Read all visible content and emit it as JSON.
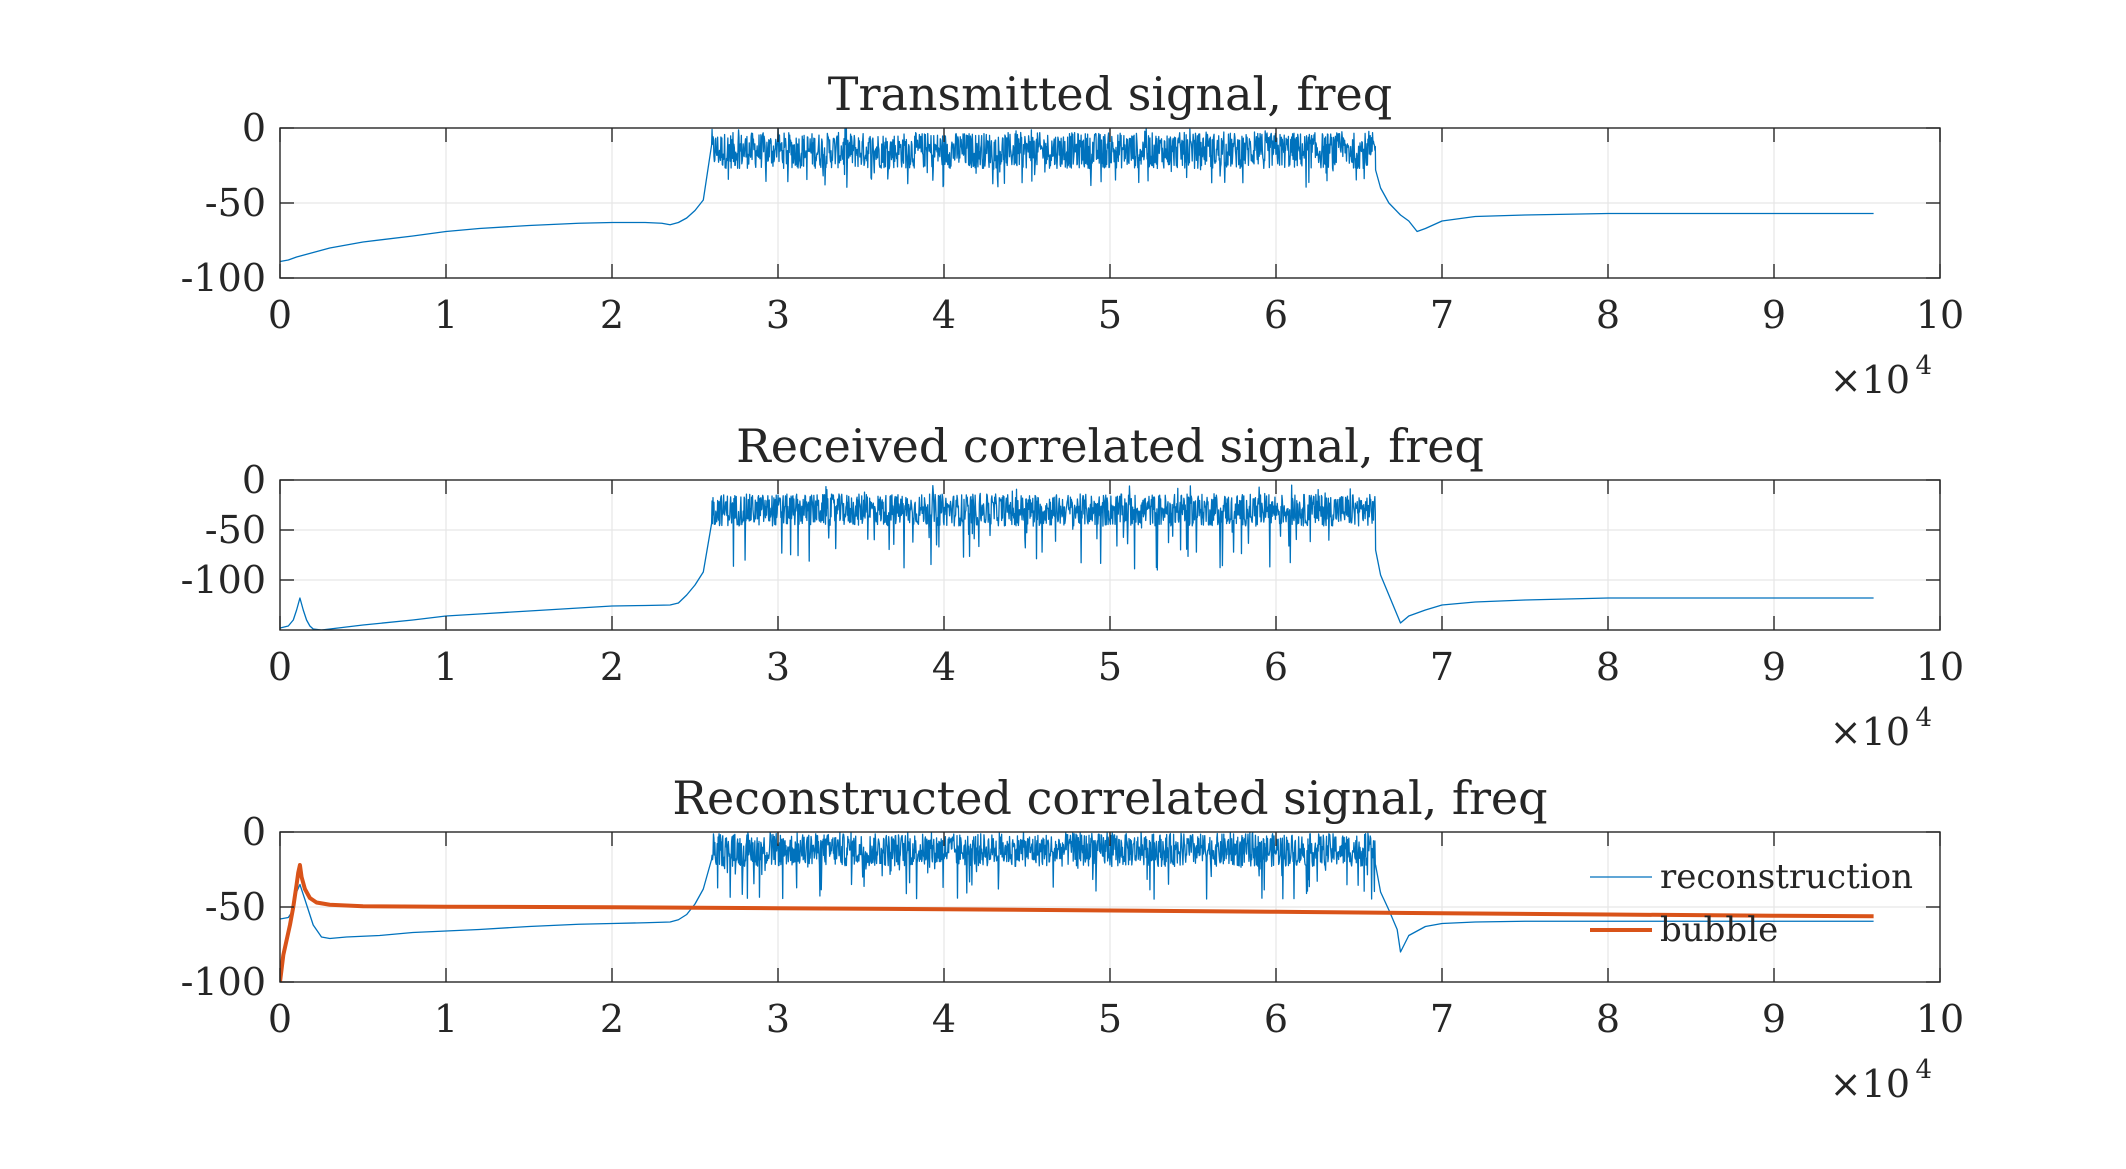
{
  "figure": {
    "background": "#ffffff"
  },
  "chart_data": [
    {
      "type": "line",
      "title": "Transmitted signal, freq",
      "xlim": [
        0,
        100000
      ],
      "ylim": [
        -100,
        0
      ],
      "xticks": [
        0,
        10000,
        20000,
        30000,
        40000,
        50000,
        60000,
        70000,
        80000,
        90000,
        100000
      ],
      "xtick_labels": [
        "0",
        "1",
        "2",
        "3",
        "4",
        "5",
        "6",
        "7",
        "8",
        "9",
        "10"
      ],
      "yticks": [
        0,
        -50,
        -100
      ],
      "ytick_labels": [
        "0",
        "-50",
        "-100"
      ],
      "x_exponent": {
        "base": "×10",
        "power": "4"
      },
      "grid": true,
      "series": [
        {
          "color": "#0072bd",
          "linewidth": 1.3,
          "x": [
            0,
            500,
            1000,
            2000,
            3000,
            5000,
            8000,
            10000,
            12000,
            15000,
            18000,
            20000,
            22000,
            23000,
            23500,
            24000,
            24500,
            25000,
            25500,
            26000,
            26500,
            66000,
            66300,
            66800,
            67500,
            68000,
            68500,
            69000,
            70000,
            72000,
            75000,
            80000,
            85000,
            90000,
            96000
          ],
          "y": [
            -89,
            -88,
            -86,
            -83,
            -80,
            -76,
            -72,
            -69,
            -67,
            -65,
            -63.5,
            -63,
            -63,
            -63.5,
            -64.5,
            -63,
            -60,
            -55,
            -48,
            -40,
            -28,
            -28,
            -40,
            -50,
            -58,
            -62,
            -69,
            -67,
            -62,
            -59,
            -58,
            -57,
            -57,
            -57,
            -57
          ],
          "noise": {
            "x_start": 26000,
            "x_end": 66000,
            "center": -15,
            "amplitude": 12,
            "dip_min": -40,
            "top_max": 0
          }
        }
      ]
    },
    {
      "type": "line",
      "title": "Received correlated signal, freq",
      "xlim": [
        0,
        100000
      ],
      "ylim": [
        -150,
        0
      ],
      "xticks": [
        0,
        10000,
        20000,
        30000,
        40000,
        50000,
        60000,
        70000,
        80000,
        90000,
        100000
      ],
      "xtick_labels": [
        "0",
        "1",
        "2",
        "3",
        "4",
        "5",
        "6",
        "7",
        "8",
        "9",
        "10"
      ],
      "yticks": [
        0,
        -50,
        -100
      ],
      "ytick_labels": [
        "0",
        "-50",
        "-100"
      ],
      "x_exponent": {
        "base": "×10",
        "power": "4"
      },
      "grid": true,
      "series": [
        {
          "color": "#0072bd",
          "linewidth": 1.3,
          "x": [
            0,
            500,
            800,
            1000,
            1200,
            1400,
            1600,
            1800,
            2000,
            2500,
            3000,
            5000,
            8000,
            10000,
            12000,
            15000,
            18000,
            20000,
            22000,
            23500,
            24000,
            24500,
            25000,
            25500,
            26000,
            66000,
            66300,
            66800,
            67300,
            67500,
            68000,
            69000,
            70000,
            72000,
            75000,
            80000,
            85000,
            90000,
            96000
          ],
          "y": [
            -148,
            -146,
            -140,
            -130,
            -118,
            -130,
            -140,
            -146,
            -149,
            -150,
            -149,
            -145,
            -140,
            -136,
            -134,
            -131,
            -128,
            -126,
            -125.5,
            -125,
            -123,
            -115,
            -105,
            -92,
            -70,
            -70,
            -95,
            -115,
            -135,
            -143,
            -136,
            -130,
            -125,
            -122,
            -120,
            -118,
            -118,
            -118,
            -118
          ],
          "noise": {
            "x_start": 26000,
            "x_end": 66000,
            "center": -30,
            "amplitude": 16,
            "dip_min": -90,
            "top_max": -5
          }
        }
      ]
    },
    {
      "type": "line",
      "title": "Reconstructed correlated signal, freq",
      "xlim": [
        0,
        100000
      ],
      "ylim": [
        -100,
        0
      ],
      "xticks": [
        0,
        10000,
        20000,
        30000,
        40000,
        50000,
        60000,
        70000,
        80000,
        90000,
        100000
      ],
      "xtick_labels": [
        "0",
        "1",
        "2",
        "3",
        "4",
        "5",
        "6",
        "7",
        "8",
        "9",
        "10"
      ],
      "yticks": [
        0,
        -50,
        -100
      ],
      "ytick_labels": [
        "0",
        "-50",
        "-100"
      ],
      "x_exponent": {
        "base": "×10",
        "power": "4"
      },
      "grid": true,
      "legend": {
        "placement": "upper-right"
      },
      "series": [
        {
          "name": "reconstruction",
          "color": "#0072bd",
          "linewidth": 1.3,
          "x": [
            0,
            500,
            800,
            1000,
            1200,
            1500,
            2000,
            2500,
            3000,
            4000,
            6000,
            8000,
            10000,
            12000,
            15000,
            18000,
            20000,
            22000,
            23500,
            24000,
            24500,
            25000,
            25500,
            26000,
            66000,
            66300,
            66800,
            67300,
            67500,
            68000,
            69000,
            70000,
            72000,
            75000,
            80000,
            85000,
            90000,
            96000
          ],
          "y": [
            -58,
            -57,
            -52,
            -40,
            -35,
            -45,
            -62,
            -70,
            -71,
            -70,
            -69,
            -67,
            -66,
            -65,
            -63,
            -61.5,
            -61,
            -60.5,
            -60,
            -58.5,
            -55,
            -48,
            -38,
            -22,
            -22,
            -40,
            -52,
            -65,
            -80,
            -69,
            -63,
            -61,
            -60,
            -59.5,
            -59.5,
            -59.5,
            -59.5,
            -59.5
          ],
          "noise": {
            "x_start": 26000,
            "x_end": 66000,
            "center": -12,
            "amplitude": 11,
            "dip_min": -45,
            "top_max": 0
          }
        },
        {
          "name": "bubble",
          "color": "#d95319",
          "linewidth": 4,
          "x": [
            0,
            200,
            400,
            600,
            800,
            1000,
            1100,
            1200,
            1300,
            1500,
            1800,
            2200,
            3000,
            5000,
            10000,
            20000,
            30000,
            40000,
            50000,
            60000,
            70000,
            80000,
            90000,
            96000
          ],
          "y": [
            -100,
            -82,
            -72,
            -62,
            -50,
            -35,
            -27,
            -22,
            -30,
            -38,
            -44,
            -47,
            -48.5,
            -49.5,
            -49.8,
            -50.2,
            -50.8,
            -51.5,
            -52.3,
            -53.2,
            -54.2,
            -55.0,
            -55.8,
            -56.2
          ]
        }
      ]
    }
  ]
}
